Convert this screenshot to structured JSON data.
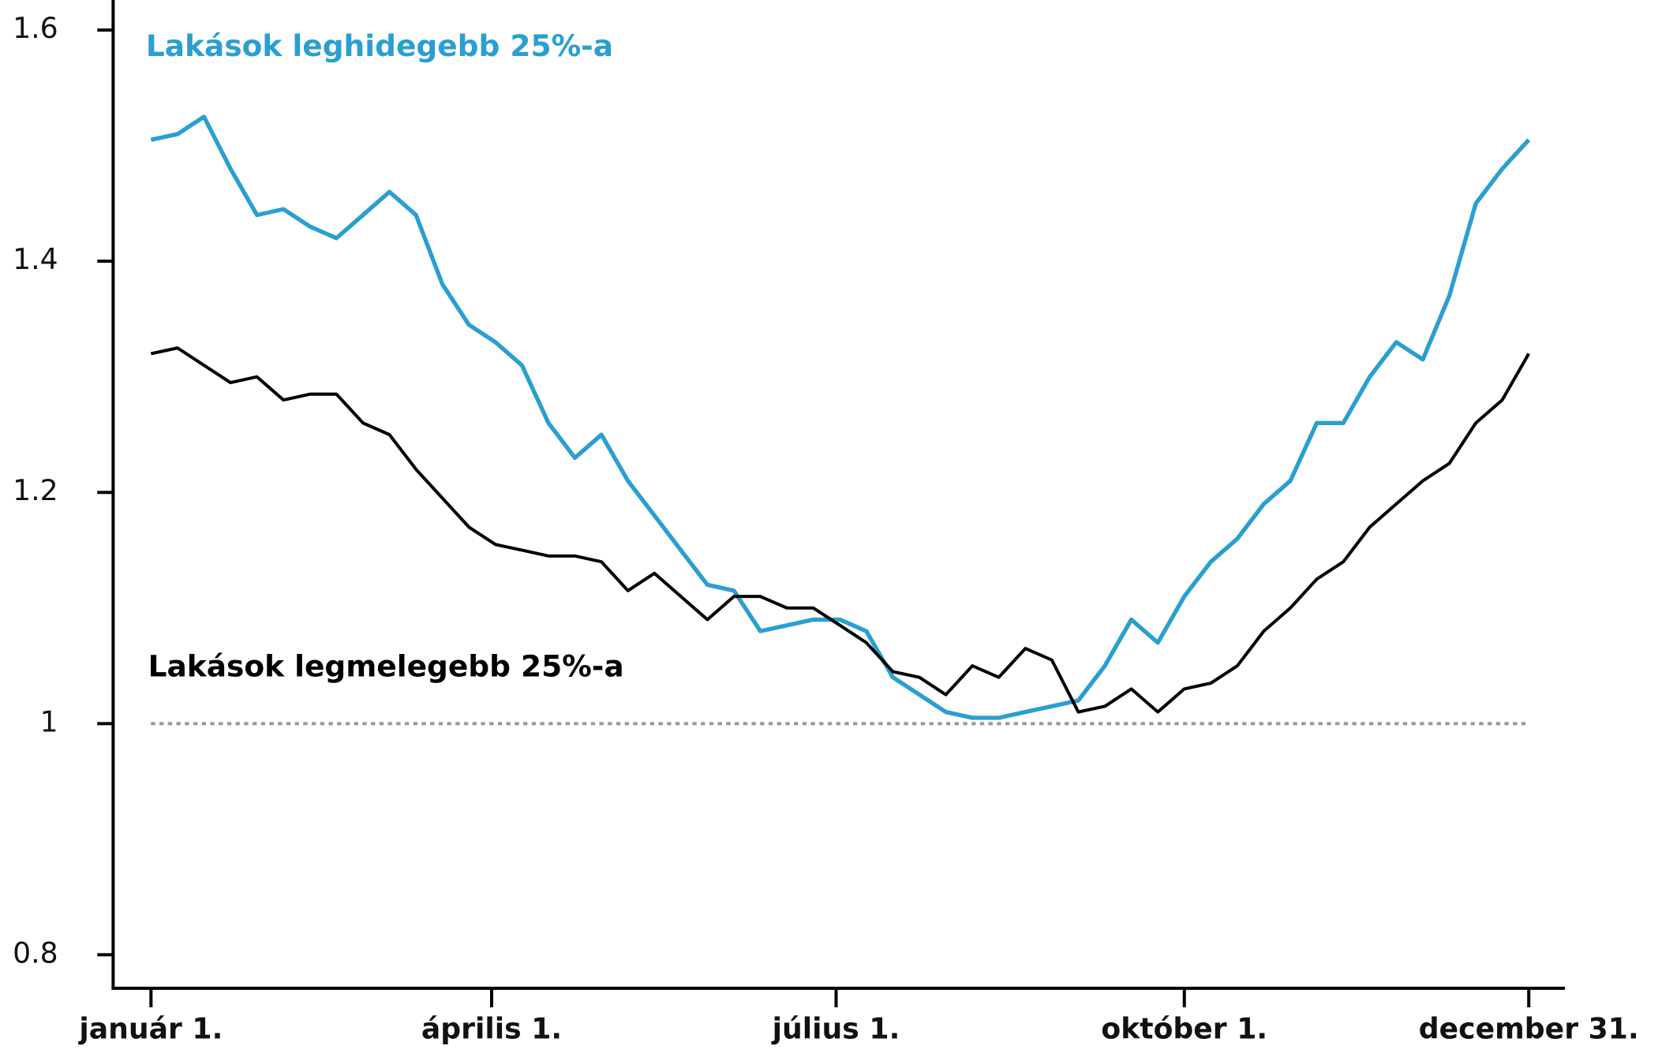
{
  "chart_data": {
    "type": "line",
    "x": [
      1,
      8,
      15,
      22,
      29,
      36,
      43,
      50,
      57,
      64,
      71,
      78,
      85,
      92,
      99,
      106,
      113,
      120,
      127,
      134,
      141,
      148,
      155,
      162,
      169,
      176,
      183,
      190,
      197,
      204,
      211,
      218,
      225,
      232,
      239,
      246,
      253,
      260,
      267,
      274,
      281,
      288,
      295,
      302,
      309,
      316,
      323,
      330,
      337,
      344,
      351,
      358,
      365
    ],
    "series": [
      {
        "name": "Lakások leghidegebb 25%-a",
        "color": "#2a9fd0",
        "values": [
          1.505,
          1.51,
          1.525,
          1.48,
          1.44,
          1.445,
          1.43,
          1.42,
          1.44,
          1.46,
          1.44,
          1.38,
          1.345,
          1.33,
          1.31,
          1.26,
          1.23,
          1.25,
          1.21,
          1.18,
          1.15,
          1.12,
          1.115,
          1.08,
          1.085,
          1.09,
          1.09,
          1.08,
          1.04,
          1.025,
          1.01,
          1.005,
          1.005,
          1.01,
          1.015,
          1.02,
          1.05,
          1.09,
          1.07,
          1.11,
          1.14,
          1.16,
          1.19,
          1.21,
          1.26,
          1.26,
          1.3,
          1.33,
          1.315,
          1.37,
          1.45,
          1.48,
          1.505
        ]
      },
      {
        "name": "Lakások legmelegebb 25%-a",
        "color": "#000000",
        "values": [
          1.32,
          1.325,
          1.31,
          1.295,
          1.3,
          1.28,
          1.285,
          1.285,
          1.26,
          1.25,
          1.22,
          1.195,
          1.17,
          1.155,
          1.15,
          1.145,
          1.145,
          1.14,
          1.115,
          1.13,
          1.11,
          1.09,
          1.11,
          1.11,
          1.1,
          1.1,
          1.085,
          1.07,
          1.045,
          1.04,
          1.025,
          1.05,
          1.04,
          1.065,
          1.055,
          1.01,
          1.015,
          1.03,
          1.01,
          1.03,
          1.035,
          1.05,
          1.08,
          1.1,
          1.125,
          1.14,
          1.17,
          1.19,
          1.21,
          1.225,
          1.26,
          1.28,
          1.32
        ]
      }
    ],
    "xlim": [
      -9,
      374
    ],
    "ylim": [
      0.771,
      1.626
    ],
    "xticks": [
      {
        "value": 1,
        "label": "január 1."
      },
      {
        "value": 91,
        "label": "április 1."
      },
      {
        "value": 182,
        "label": "július 1."
      },
      {
        "value": 274,
        "label": "október 1."
      },
      {
        "value": 365,
        "label": "december 31."
      }
    ],
    "yticks": [
      0.8,
      1,
      1.2,
      1.4,
      1.6
    ],
    "reference_line": 1
  }
}
